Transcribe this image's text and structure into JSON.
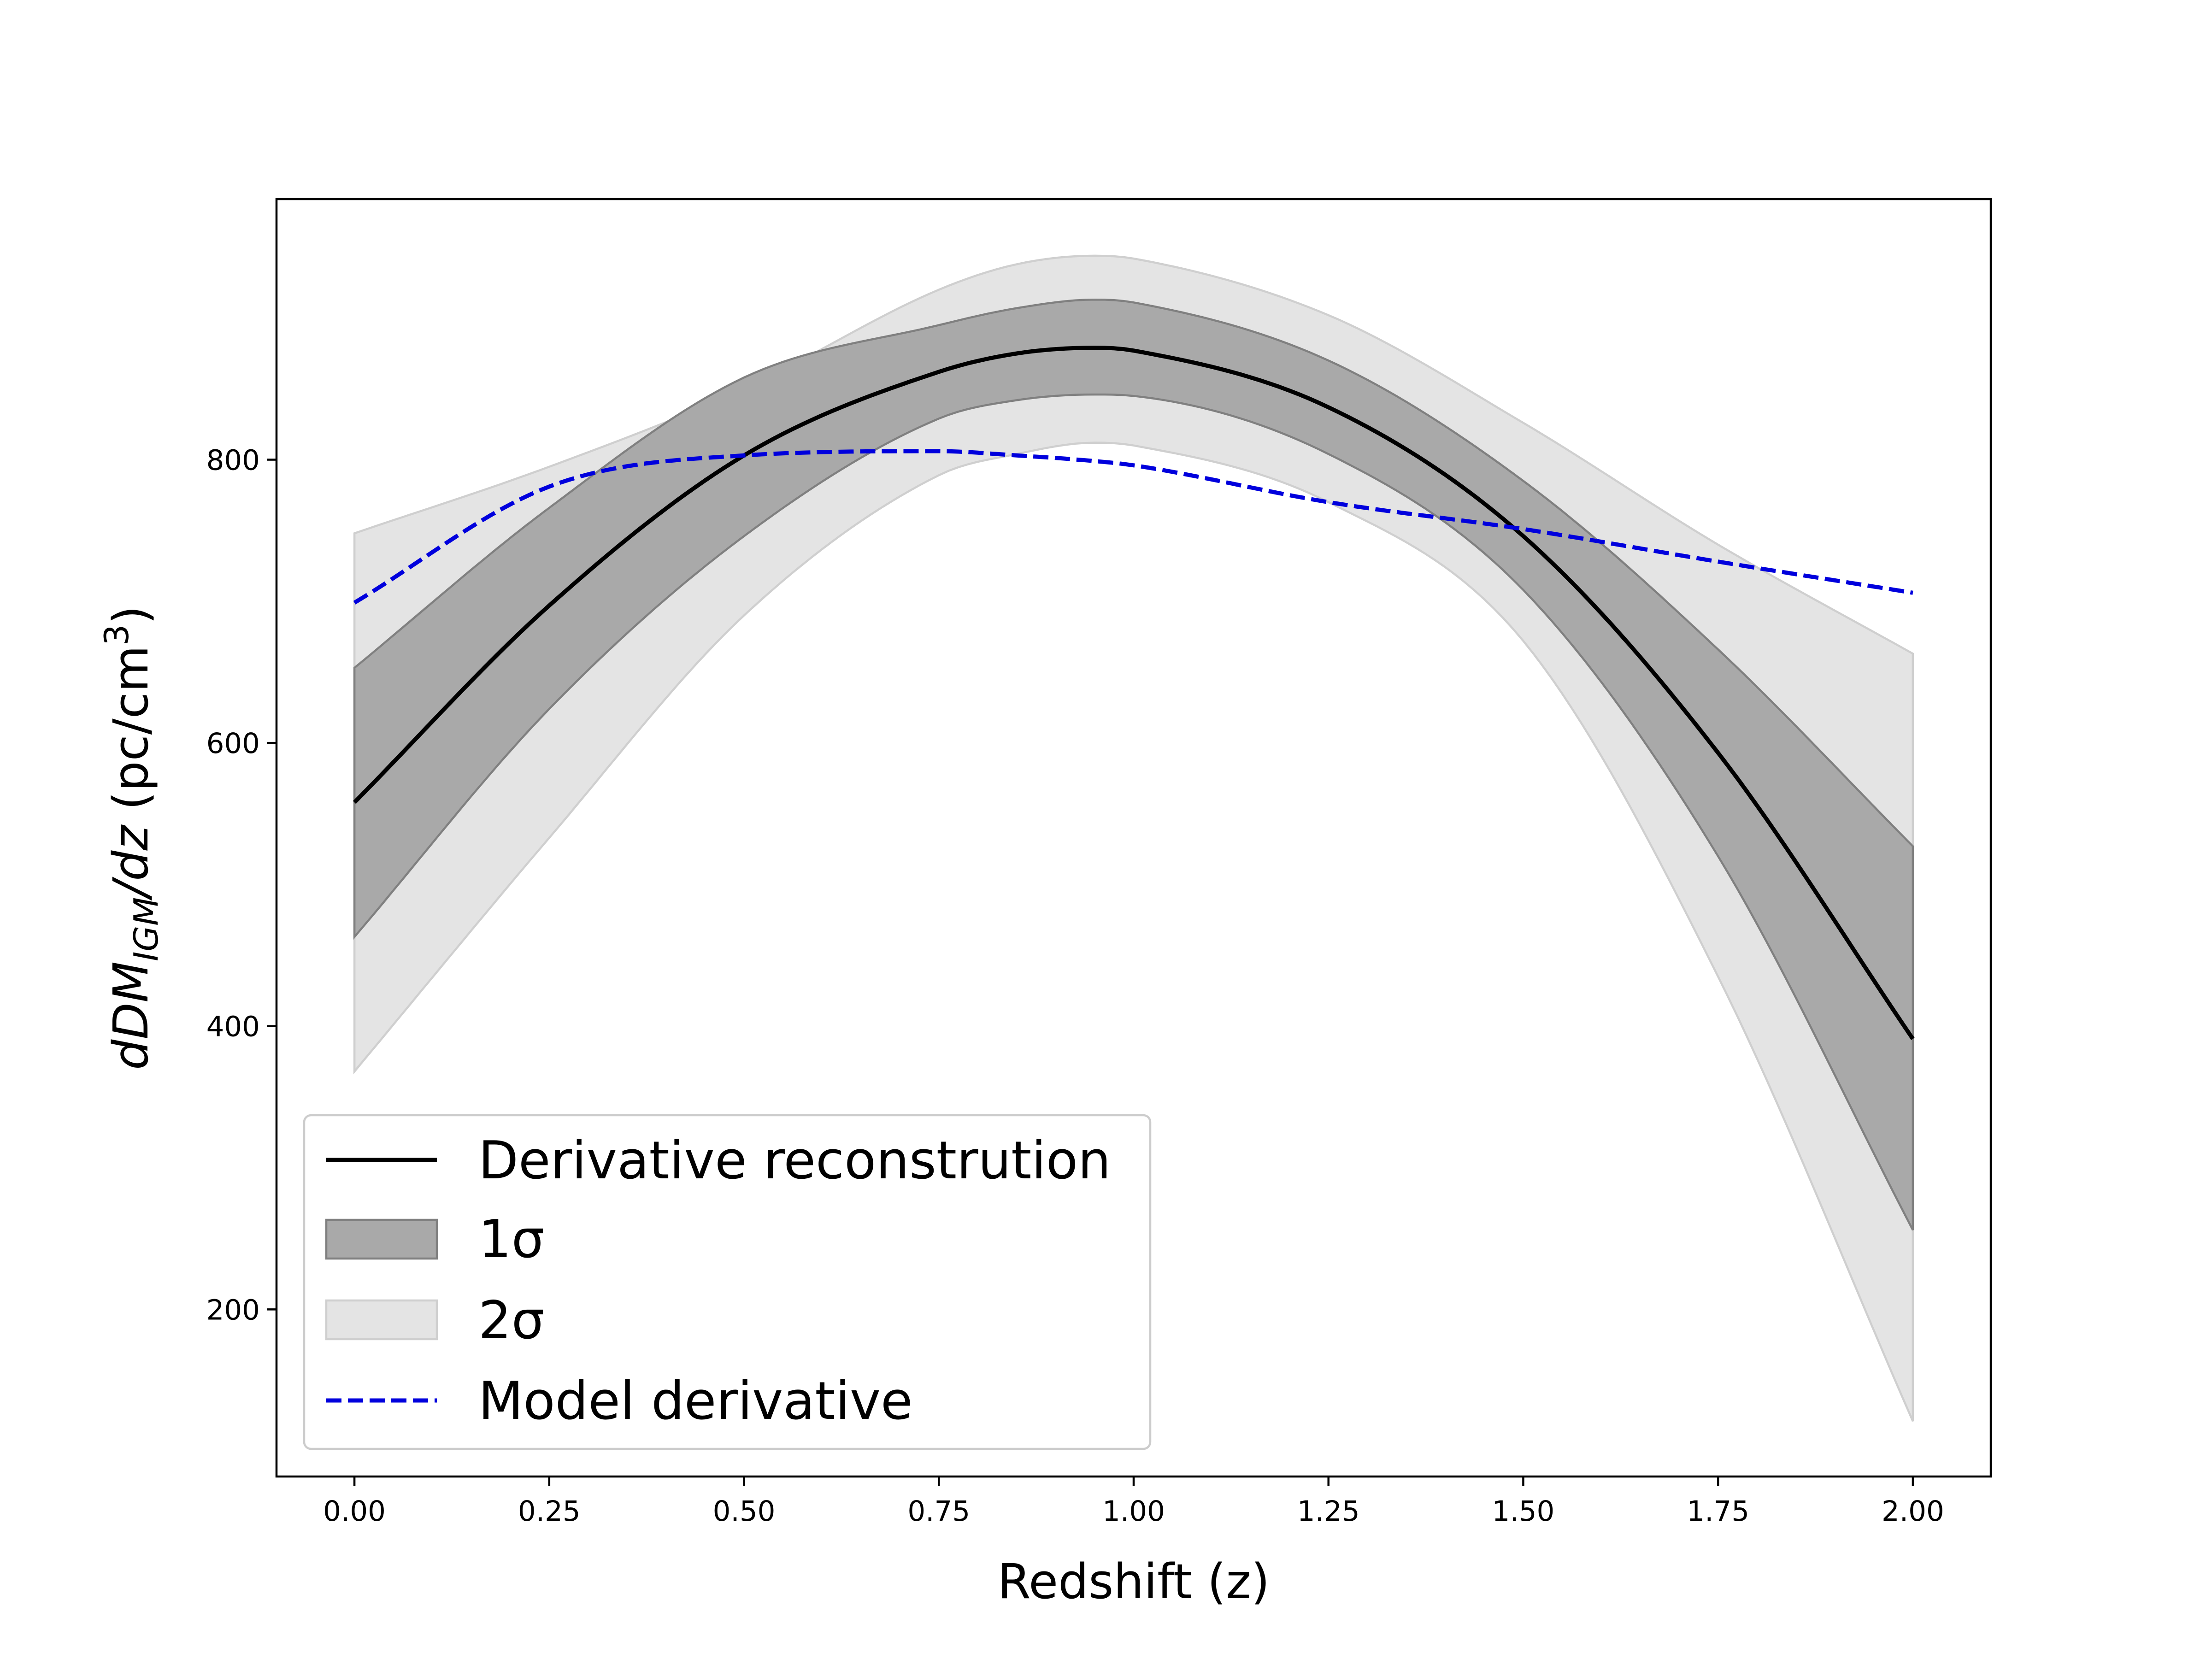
{
  "chart_data": {
    "type": "line",
    "xlabel": "Redshift (z)",
    "ylabel": {
      "prefix": "dDM",
      "subscript": "IGM",
      "fraction": "/dz",
      "unit": " (pc/cm",
      "superscript": "3",
      "close": ")"
    },
    "xlim": [
      -0.1,
      2.1
    ],
    "ylim": [
      82,
      984
    ],
    "x_ticks": [
      {
        "value": 0.0,
        "label": "0.00"
      },
      {
        "value": 0.25,
        "label": "0.25"
      },
      {
        "value": 0.5,
        "label": "0.50"
      },
      {
        "value": 0.75,
        "label": "0.75"
      },
      {
        "value": 1.0,
        "label": "1.00"
      },
      {
        "value": 1.25,
        "label": "1.25"
      },
      {
        "value": 1.5,
        "label": "1.50"
      },
      {
        "value": 1.75,
        "label": "1.75"
      },
      {
        "value": 2.0,
        "label": "2.00"
      }
    ],
    "y_ticks": [
      {
        "value": 200,
        "label": "200"
      },
      {
        "value": 400,
        "label": "400"
      },
      {
        "value": 600,
        "label": "600"
      },
      {
        "value": 800,
        "label": "800"
      }
    ],
    "grid": false,
    "legend_position": "lower-left",
    "x": [
      0.0,
      0.25,
      0.5,
      0.75,
      0.85,
      0.95,
      1.0,
      1.25,
      1.5,
      1.75,
      2.0
    ],
    "series": [
      {
        "name": "Derivative reconstrution",
        "kind": "line",
        "style": "solid",
        "color": "#000000",
        "values": [
          558,
          697,
          803,
          862,
          875,
          879,
          877,
          837,
          746,
          593,
          391
        ]
      },
      {
        "name": "1σ",
        "kind": "band",
        "color": "#a9a9a9",
        "edge_color": "#808080",
        "lower": [
          463,
          624,
          746,
          829,
          842,
          846,
          845,
          804,
          708,
          520,
          256
        ],
        "upper": [
          653,
          766,
          858,
          895,
          907,
          913,
          911,
          870,
          785,
          666,
          527
        ]
      },
      {
        "name": "2σ",
        "kind": "band",
        "color": "#e4e4e4",
        "edge_color": "#cfcfcf",
        "lower": [
          368,
          533,
          690,
          789,
          804,
          812,
          810,
          770,
          672,
          435,
          121
        ],
        "upper": [
          748,
          795,
          850,
          920,
          938,
          944,
          942,
          902,
          826,
          740,
          663
        ]
      },
      {
        "name": "Model derivative",
        "kind": "line",
        "style": "dashed",
        "color": "#0000dd",
        "values": [
          699,
          781,
          803,
          806,
          803,
          799,
          796,
          770,
          751,
          728,
          706
        ]
      }
    ]
  }
}
